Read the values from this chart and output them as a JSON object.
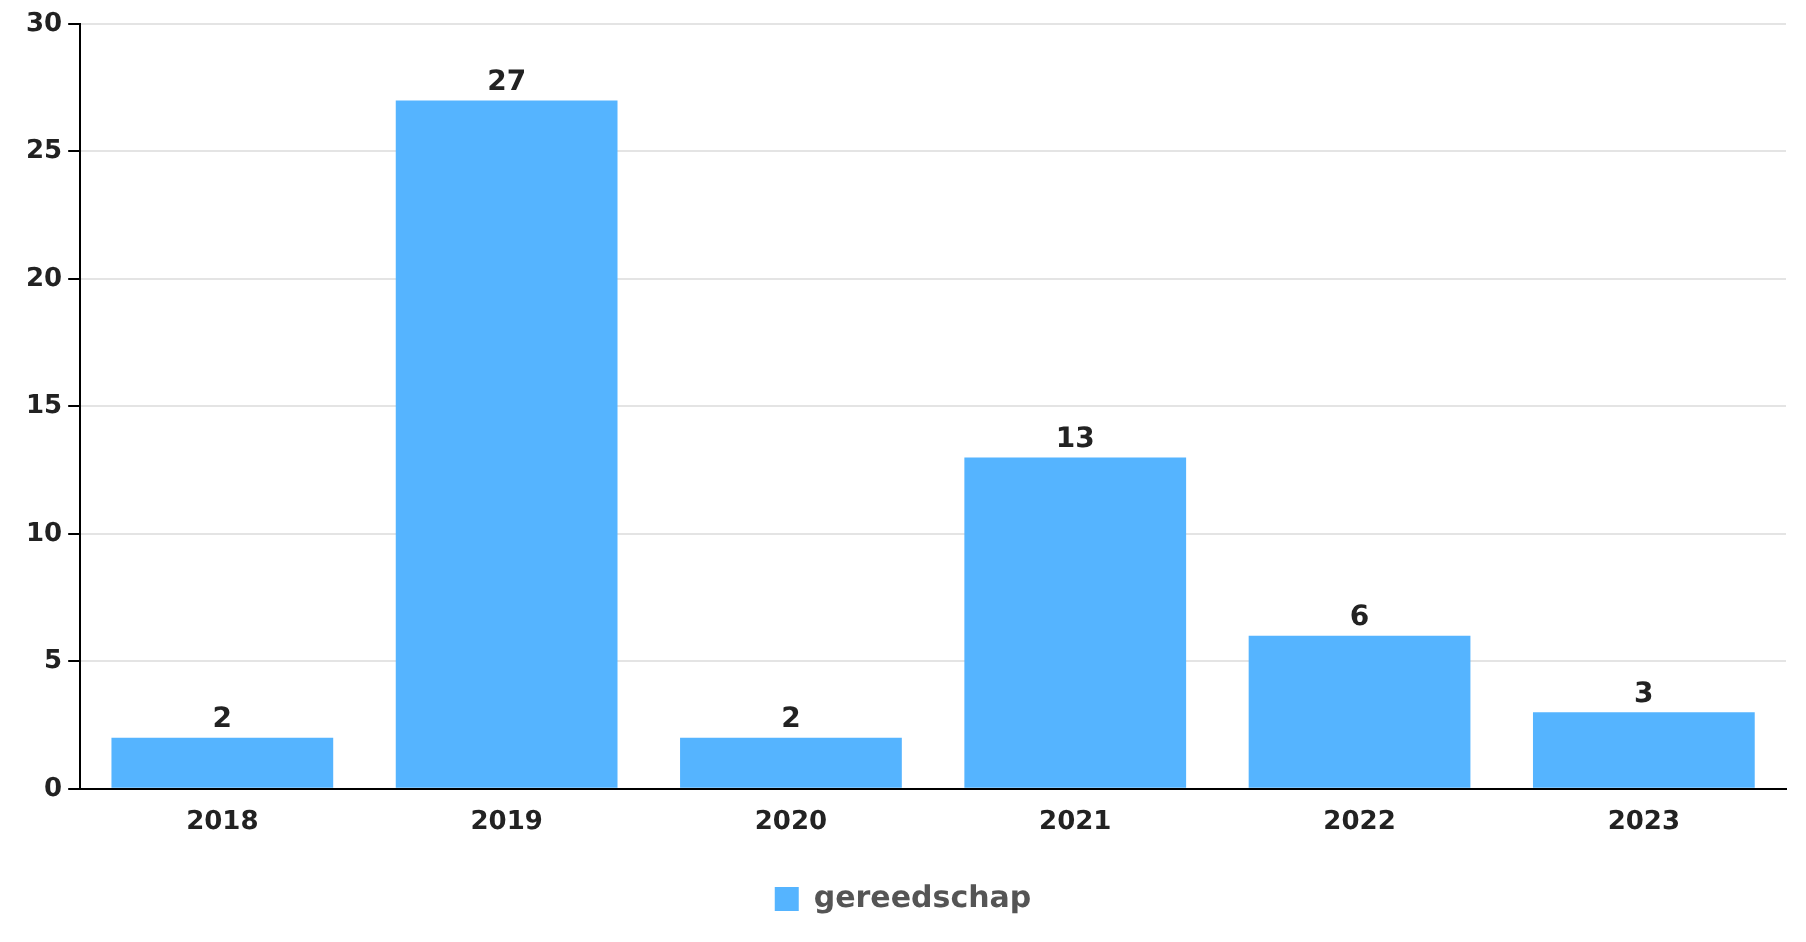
{
  "chart_data": {
    "type": "bar",
    "categories": [
      "2018",
      "2019",
      "2020",
      "2021",
      "2022",
      "2023"
    ],
    "series": [
      {
        "name": "gereedschap",
        "color": "#55b4ff",
        "values": [
          2,
          27,
          2,
          13,
          6,
          3
        ]
      }
    ],
    "ylim": [
      0,
      30
    ],
    "yticks": [
      0,
      5,
      10,
      15,
      20,
      25,
      30
    ],
    "grid": "y",
    "legend": "bottom",
    "data_labels": true
  }
}
